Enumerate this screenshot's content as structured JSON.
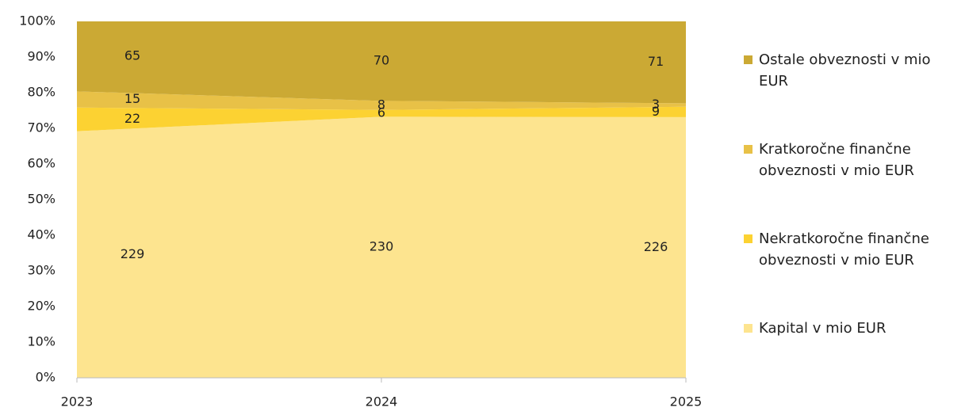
{
  "chart_data": {
    "type": "area",
    "stacking": "percent",
    "categories": [
      "2023",
      "2024",
      "2025"
    ],
    "series": [
      {
        "name": "Kapital v mio EUR",
        "color": "#fde48f",
        "values": [
          229,
          230,
          226
        ]
      },
      {
        "name": "Nekratkoročne finančne obveznosti v mio EUR",
        "color": "#fcd232",
        "values": [
          22,
          6,
          9
        ]
      },
      {
        "name": "Kratkoročne finančne obveznosti v mio EUR",
        "color": "#e8c147",
        "values": [
          15,
          8,
          3
        ]
      },
      {
        "name": "Ostale obveznosti v mio EUR",
        "color": "#cba934",
        "values": [
          65,
          70,
          71
        ]
      }
    ],
    "ylim": [
      0,
      100
    ],
    "yticks": [
      {
        "value": 0,
        "label": "0%"
      },
      {
        "value": 10,
        "label": "10%"
      },
      {
        "value": 20,
        "label": "20%"
      },
      {
        "value": 30,
        "label": "30%"
      },
      {
        "value": 40,
        "label": "40%"
      },
      {
        "value": 50,
        "label": "50%"
      },
      {
        "value": 60,
        "label": "60%"
      },
      {
        "value": 70,
        "label": "70%"
      },
      {
        "value": 80,
        "label": "80%"
      },
      {
        "value": 90,
        "label": "90%"
      },
      {
        "value": 100,
        "label": "100%"
      }
    ],
    "legend": "right"
  }
}
